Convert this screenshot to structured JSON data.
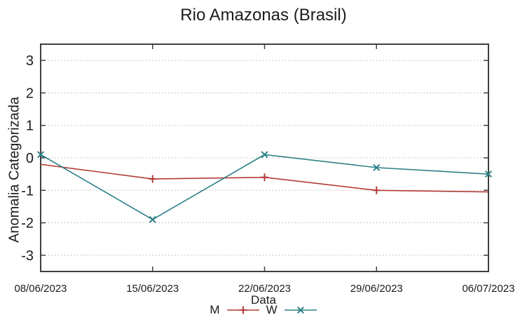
{
  "title": "Rio Amazonas (Brasil)",
  "chart_data": {
    "type": "line",
    "title": "Rio Amazonas (Brasil)",
    "xlabel": "Data",
    "ylabel": "Anomalia Categorizada",
    "x": [
      "08/06/2023",
      "15/06/2023",
      "22/06/2023",
      "29/06/2023",
      "06/07/2023"
    ],
    "yticks": [
      -3,
      -2,
      -1,
      0,
      1,
      2,
      3
    ],
    "ylim": [
      -3.5,
      3.5
    ],
    "grid": "horizontal-dotted",
    "legend_position": "bottom-center",
    "series": [
      {
        "name": "M",
        "color": "#b23b36",
        "marker": "plus",
        "values": [
          -0.2,
          -0.65,
          -0.6,
          -1.0,
          -1.05
        ],
        "marker_visible": [
          false,
          true,
          true,
          true,
          false
        ]
      },
      {
        "name": "W",
        "color": "#2e8187",
        "marker": "cross",
        "values": [
          0.1,
          -1.9,
          0.1,
          -0.3,
          -0.5
        ],
        "marker_visible": [
          true,
          true,
          true,
          true,
          true
        ]
      }
    ],
    "colors": {
      "border": "#3f3f3f",
      "grid": "#b5b5b5",
      "text": "#1b1b1b"
    }
  }
}
